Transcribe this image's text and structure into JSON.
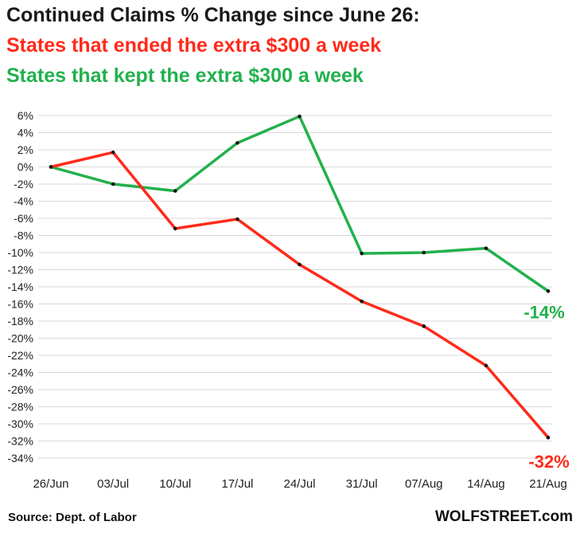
{
  "titles": {
    "main": "Continued  Claims % Change since June 26:",
    "red_line": "States that ended the extra $300 a week",
    "green_line": "States that kept the extra $300 a week"
  },
  "footer": {
    "source": "Source: Dept. of Labor",
    "brand": "WOLFSTREET.com"
  },
  "chart_data": {
    "type": "line",
    "title": "Continued  Claims % Change since June 26:",
    "categories": [
      "26/Jun",
      "03/Jul",
      "10/Jul",
      "17/Jul",
      "24/Jul",
      "31/Jul",
      "07/Aug",
      "14/Aug",
      "21/Aug"
    ],
    "y_ticks": [
      "6%",
      "4%",
      "2%",
      "0%",
      "-2%",
      "-4%",
      "-6%",
      "-8%",
      "-10%",
      "-12%",
      "-14%",
      "-16%",
      "-18%",
      "-20%",
      "-22%",
      "-24%",
      "-26%",
      "-28%",
      "-30%",
      "-32%",
      "-34%"
    ],
    "ylim": [
      -34,
      6
    ],
    "grid": true,
    "series": [
      {
        "name": "States that ended the extra $300 a week",
        "color": "#ff2a1a",
        "values": [
          0,
          1.7,
          -7.2,
          -6.1,
          -11.4,
          -15.7,
          -18.6,
          -23.2,
          -31.6
        ],
        "end_label": "-32%"
      },
      {
        "name": "States that kept the extra $300 a week",
        "color": "#22b14c",
        "values": [
          0,
          -2.0,
          -2.8,
          2.8,
          5.9,
          -10.1,
          -10.0,
          -9.5,
          -14.5
        ],
        "end_label": "-14%"
      }
    ]
  }
}
